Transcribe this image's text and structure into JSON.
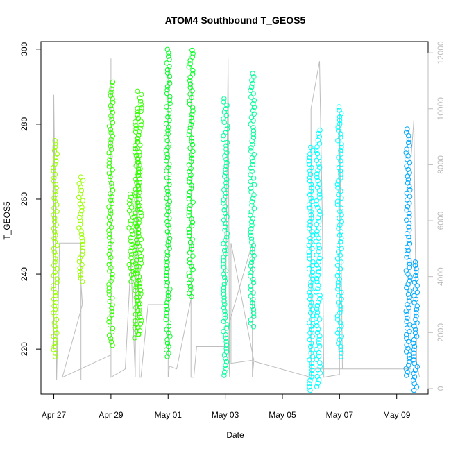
{
  "chart_data": {
    "type": "scatter",
    "title": "ATOM4 Southbound T_GEOS5",
    "xlabel": "Date",
    "ylabel": "T_GEOS5",
    "x_tick_labels": [
      "Apr 27",
      "Apr 29",
      "May 01",
      "May 03",
      "May 05",
      "May 07",
      "May 09"
    ],
    "x_ticks_day": [
      0,
      2,
      4,
      6,
      8,
      10,
      12
    ],
    "xlim_day": [
      -0.45,
      13.1
    ],
    "y_ticks": [
      220,
      240,
      260,
      280,
      300
    ],
    "ylim": [
      208,
      302
    ],
    "y2_ticks": [
      0,
      2000,
      4000,
      6000,
      8000,
      10000,
      12000
    ],
    "y2lim": [
      -200,
      12400
    ],
    "y2_color": "#bdbdbd",
    "box": true,
    "series": [
      {
        "color": "#99ff00",
        "segments": [
          {
            "day": 0.05,
            "min": 218,
            "max": 276
          },
          {
            "day": 0.95,
            "min": 238,
            "max": 266
          }
        ]
      },
      {
        "color": "#33ff00",
        "segments": [
          {
            "day": 2.0,
            "min": 221,
            "max": 292
          },
          {
            "day": 2.7,
            "min": 238,
            "max": 262
          },
          {
            "day": 2.9,
            "min": 223,
            "max": 285
          },
          {
            "day": 3.0,
            "min": 224,
            "max": 289
          }
        ]
      },
      {
        "color": "#00ff22",
        "segments": [
          {
            "day": 4.0,
            "min": 218,
            "max": 300
          },
          {
            "day": 4.8,
            "min": 234,
            "max": 300
          }
        ]
      },
      {
        "color": "#00ff99",
        "segments": [
          {
            "day": 6.0,
            "min": 213,
            "max": 287
          },
          {
            "day": 6.95,
            "min": 226,
            "max": 294
          }
        ]
      },
      {
        "color": "#00ffff",
        "segments": [
          {
            "day": 9.0,
            "min": 209,
            "max": 274
          },
          {
            "day": 9.25,
            "min": 210,
            "max": 279
          },
          {
            "day": 10.0,
            "min": 218,
            "max": 285
          }
        ]
      },
      {
        "color": "#00aaff",
        "segments": [
          {
            "day": 12.4,
            "min": 213,
            "max": 279
          },
          {
            "day": 12.65,
            "min": 209,
            "max": 244
          }
        ]
      }
    ],
    "secondary_series": {
      "color": "#bdbdbd",
      "path": [
        [
          0.0,
          1400
        ],
        [
          0.0,
          10500
        ],
        [
          0.05,
          6000
        ],
        [
          0.1,
          300
        ],
        [
          0.2,
          5200
        ],
        [
          0.95,
          5200
        ],
        [
          0.95,
          300
        ],
        [
          0.95,
          3800
        ],
        [
          1.0,
          3000
        ],
        [
          0.3,
          400
        ],
        [
          2.0,
          1200
        ],
        [
          2.0,
          11800
        ],
        [
          2.0,
          400
        ],
        [
          2.5,
          700
        ],
        [
          2.7,
          4600
        ],
        [
          2.85,
          400
        ],
        [
          2.9,
          9000
        ],
        [
          3.0,
          400
        ],
        [
          3.05,
          400
        ],
        [
          3.3,
          3000
        ],
        [
          4.0,
          3000
        ],
        [
          4.0,
          11500
        ],
        [
          4.0,
          400
        ],
        [
          4.05,
          800
        ],
        [
          4.3,
          700
        ],
        [
          4.8,
          3200
        ],
        [
          4.8,
          11000
        ],
        [
          4.8,
          400
        ],
        [
          4.9,
          400
        ],
        [
          5.0,
          1500
        ],
        [
          6.0,
          1500
        ],
        [
          6.1,
          11800
        ],
        [
          6.15,
          400
        ],
        [
          6.1,
          2200
        ],
        [
          6.95,
          5200
        ],
        [
          6.95,
          400
        ],
        [
          7.0,
          1000
        ],
        [
          6.2,
          5200
        ],
        [
          6.2,
          900
        ],
        [
          6.9,
          1000
        ],
        [
          9.0,
          400
        ],
        [
          9.0,
          10000
        ],
        [
          9.3,
          11700
        ],
        [
          9.4,
          6000
        ],
        [
          9.45,
          400
        ],
        [
          10.0,
          500
        ],
        [
          10.0,
          9900
        ],
        [
          10.1,
          700
        ],
        [
          9.0,
          700
        ],
        [
          12.5,
          700
        ],
        [
          12.5,
          8200
        ],
        [
          12.6,
          9600
        ],
        [
          12.7,
          900
        ],
        [
          12.8,
          400
        ]
      ]
    }
  }
}
